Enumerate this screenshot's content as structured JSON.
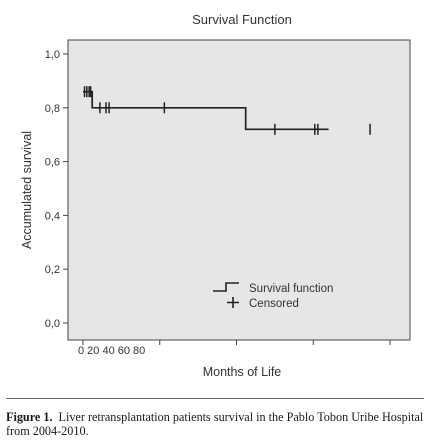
{
  "chart_data": {
    "type": "line",
    "title": "Survival Function",
    "xlabel": "Months of Life",
    "ylabel": "Accumulated survival",
    "xlim": [
      0,
      165
    ],
    "ylim": [
      0,
      1.0
    ],
    "x_ticks": [
      0,
      20,
      40,
      60,
      80
    ],
    "x_tick_label_text": "0 20 40 60 80",
    "y_ticks": [
      0,
      0.2,
      0.4,
      0.6,
      0.8,
      1.0
    ],
    "y_tick_labels": [
      "0,0",
      "0,2",
      "0,4",
      "0,6",
      "0,8",
      "1,0"
    ],
    "grid": false,
    "legend_placement": "lower-right",
    "series": [
      {
        "name": "Survival function",
        "step_x": [
          0,
          6,
          6,
          106,
          106,
          160
        ],
        "step_y": [
          0.86,
          0.86,
          0.8,
          0.8,
          0.72,
          0.72
        ]
      },
      {
        "name": "Censored",
        "censored_x": [
          1,
          2.5,
          4,
          5,
          11,
          15,
          17,
          53,
          125,
          151,
          153,
          187
        ],
        "censored_y": [
          0.86,
          0.86,
          0.86,
          0.86,
          0.8,
          0.8,
          0.8,
          0.8,
          0.72,
          0.72,
          0.72,
          0.72
        ]
      }
    ]
  },
  "caption": {
    "label": "Figure 1.",
    "text": "Liver retransplantation patients survival in the Pablo Tobon Uribe Hospital from 2004-2010."
  },
  "colors": {
    "plot_background": "#e6e6e6",
    "line": "#222222",
    "page": "#ffffff"
  }
}
